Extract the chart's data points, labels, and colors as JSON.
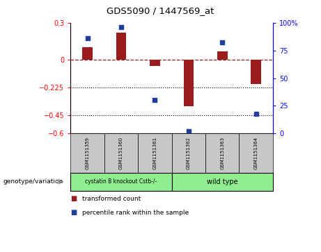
{
  "title": "GDS5090 / 1447569_at",
  "samples": [
    "GSM1151359",
    "GSM1151360",
    "GSM1151361",
    "GSM1151362",
    "GSM1151363",
    "GSM1151364"
  ],
  "transformed_count": [
    0.1,
    0.22,
    -0.05,
    -0.38,
    0.065,
    -0.2
  ],
  "percentile_rank": [
    86,
    96,
    30,
    2,
    82,
    18
  ],
  "ylim_left": [
    -0.6,
    0.3
  ],
  "ylim_right": [
    0,
    100
  ],
  "yticks_left": [
    0.3,
    0.0,
    -0.225,
    -0.45,
    -0.6
  ],
  "yticks_right": [
    100,
    75,
    50,
    25,
    0
  ],
  "hlines_dotted": [
    -0.225,
    -0.45
  ],
  "bar_color": "#9B1C1C",
  "dot_color": "#1F3F9F",
  "group1_label": "cystatin B knockout Cstb-/-",
  "group2_label": "wild type",
  "group1_color": "#90EE90",
  "group2_color": "#90EE90",
  "sample_box_color": "#C8C8C8",
  "genotype_label": "genotype/variation",
  "legend_red": "transformed count",
  "legend_blue": "percentile rank within the sample"
}
